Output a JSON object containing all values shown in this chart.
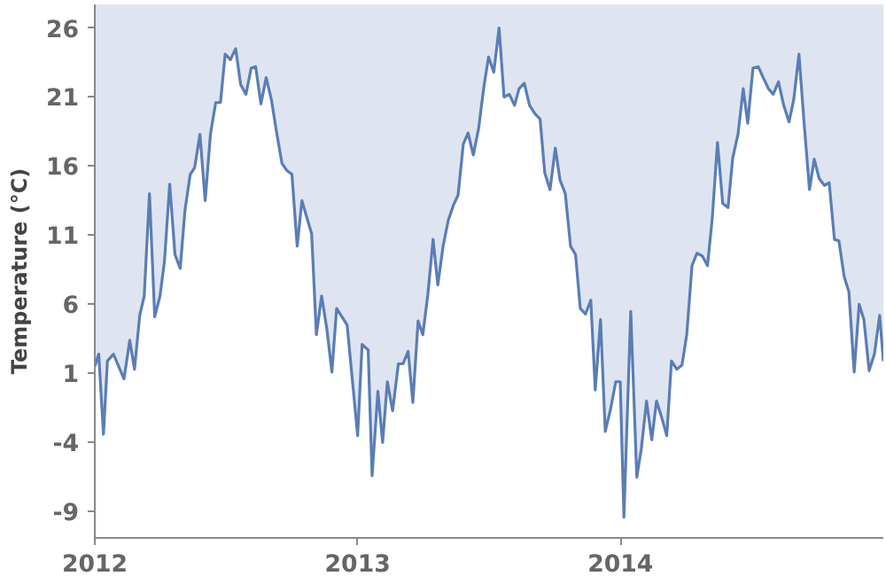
{
  "chart_data": {
    "type": "area",
    "ylabel": "Temperature (°C)",
    "x": [
      2012.0,
      2012.015,
      2012.033,
      2012.048,
      2012.071,
      2012.111,
      2012.133,
      2012.151,
      2012.171,
      2012.188,
      2012.208,
      2012.228,
      2012.248,
      2012.265,
      2012.285,
      2012.305,
      2012.325,
      2012.343,
      2012.363,
      2012.38,
      2012.4,
      2012.42,
      2012.44,
      2012.46,
      2012.478,
      2012.496,
      2012.516,
      2012.536,
      2012.555,
      2012.575,
      2012.595,
      2012.612,
      2012.632,
      2012.652,
      2012.672,
      2012.692,
      2012.712,
      2012.73,
      2012.75,
      2012.77,
      2012.788,
      2012.808,
      2012.825,
      2012.843,
      2012.863,
      2012.883,
      2012.902,
      2012.92,
      2012.94,
      2012.96,
      2012.98,
      2013.0,
      2013.017,
      2013.04,
      2013.055,
      2013.077,
      2013.095,
      2013.113,
      2013.133,
      2013.155,
      2013.173,
      2013.192,
      2013.21,
      2013.23,
      2013.248,
      2013.267,
      2013.287,
      2013.305,
      2013.325,
      2013.345,
      2013.365,
      2013.382,
      2013.402,
      2013.42,
      2013.44,
      2013.46,
      2013.48,
      2013.498,
      2013.518,
      2013.538,
      2013.557,
      2013.577,
      2013.597,
      2013.614,
      2013.634,
      2013.654,
      2013.674,
      2013.694,
      2013.712,
      2013.732,
      2013.752,
      2013.77,
      2013.79,
      2013.81,
      2013.829,
      2013.847,
      2013.867,
      2013.887,
      2013.904,
      2013.924,
      2013.942,
      2013.962,
      2013.982,
      2013.999,
      2014.013,
      2014.039,
      2014.062,
      2014.079,
      2014.099,
      2014.119,
      2014.137,
      2014.157,
      2014.176,
      2014.194,
      2014.214,
      2014.234,
      2014.252,
      2014.272,
      2014.291,
      2014.311,
      2014.331,
      2014.349,
      2014.369,
      2014.389,
      2014.409,
      2014.427,
      2014.447,
      2014.467,
      2014.484,
      2014.504,
      2014.524,
      2014.543,
      2014.563,
      2014.581,
      2014.601,
      2014.621,
      2014.641,
      2014.659,
      2014.679,
      2014.699,
      2014.719,
      2014.737,
      2014.756,
      2014.776,
      2014.794,
      2014.814,
      2014.831,
      2014.851,
      2014.869,
      2014.889,
      2014.908,
      2014.926,
      2014.946,
      2014.966,
      2014.986,
      2015.0
    ],
    "series": [
      {
        "color": "#5b7db5",
        "values": [
          1.5,
          2.4,
          -3.4,
          1.9,
          2.4,
          0.6,
          3.4,
          1.3,
          5.2,
          6.6,
          14.0,
          5.1,
          6.6,
          9.1,
          14.7,
          9.6,
          8.6,
          12.8,
          15.4,
          15.9,
          18.3,
          13.5,
          18.3,
          20.6,
          20.6,
          24.1,
          23.7,
          24.5,
          21.9,
          21.2,
          23.1,
          23.2,
          20.5,
          22.4,
          20.8,
          18.4,
          16.2,
          15.7,
          15.4,
          10.2,
          13.5,
          12.2,
          11.1,
          3.8,
          6.6,
          4.2,
          1.1,
          5.7,
          5.1,
          4.5,
          0.5,
          -3.5,
          3.1,
          2.7,
          -6.4,
          -0.3,
          -4.0,
          0.4,
          -1.7,
          1.7,
          1.7,
          2.6,
          -1.1,
          4.8,
          3.8,
          6.7,
          10.7,
          7.4,
          10.2,
          12.1,
          13.2,
          13.9,
          17.6,
          18.4,
          16.8,
          18.7,
          21.7,
          23.9,
          22.8,
          26.0,
          21.0,
          21.2,
          20.4,
          21.6,
          22.0,
          20.4,
          19.8,
          19.4,
          15.5,
          14.3,
          17.3,
          15.0,
          14.0,
          10.2,
          9.6,
          5.7,
          5.3,
          6.3,
          -0.2,
          4.9,
          -3.2,
          -1.6,
          0.4,
          0.4,
          -9.4,
          5.5,
          -6.5,
          -4.5,
          -1.0,
          -3.8,
          -1.0,
          -2.2,
          -3.5,
          1.9,
          1.3,
          1.6,
          3.8,
          8.8,
          9.7,
          9.5,
          8.8,
          12.2,
          17.7,
          13.3,
          13.0,
          16.6,
          18.3,
          21.6,
          19.1,
          23.1,
          23.2,
          22.4,
          21.6,
          21.2,
          22.1,
          20.4,
          19.2,
          20.8,
          24.1,
          19.0,
          14.3,
          16.5,
          15.1,
          14.6,
          14.8,
          10.7,
          10.6,
          8.0,
          6.9,
          1.1,
          6.0,
          4.9,
          1.2,
          2.4,
          5.2,
          1.9
        ]
      }
    ],
    "xlim": [
      2012.0,
      2015.0
    ],
    "ylim": [
      -10.9,
      27.7
    ],
    "xticks": [
      2012,
      2013,
      2014
    ],
    "yticks": [
      -9,
      -4,
      1,
      6,
      11,
      16,
      21,
      26
    ],
    "grid": false,
    "marker": "none",
    "line_style": "solid"
  }
}
